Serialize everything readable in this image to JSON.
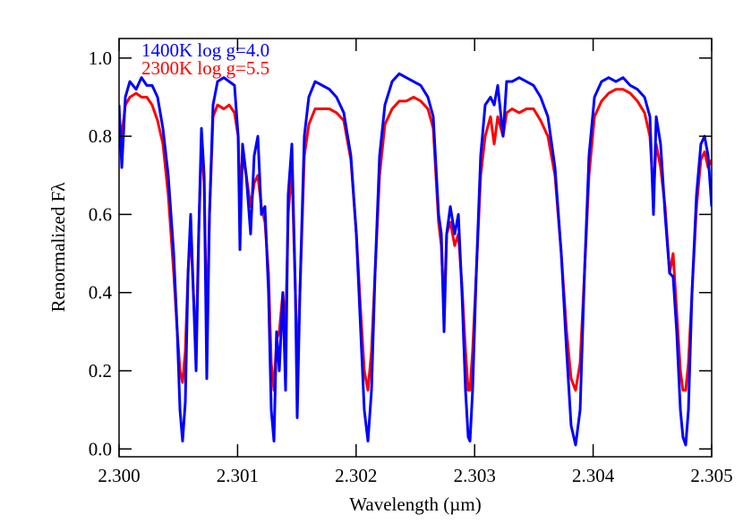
{
  "chart_data": {
    "type": "line",
    "x_label": "Wavelength (µm)",
    "y_label": "Renormalized Fλ",
    "x": [
      2.3,
      2.300023,
      2.300053,
      2.300091,
      2.300144,
      2.300189,
      2.300234,
      2.300279,
      2.300325,
      2.30037,
      2.300415,
      2.300461,
      2.300491,
      2.300514,
      2.300536,
      2.300559,
      2.300582,
      2.300604,
      2.300627,
      2.30065,
      2.300672,
      2.300695,
      2.300718,
      2.30074,
      2.300763,
      2.300793,
      2.300831,
      2.300884,
      2.300929,
      2.300974,
      2.301005,
      2.30102,
      2.301042,
      2.301073,
      2.30111,
      2.30114,
      2.301171,
      2.301201,
      2.301231,
      2.301261,
      2.301284,
      2.301307,
      2.301329,
      2.301352,
      2.301382,
      2.301405,
      2.301427,
      2.301458,
      2.301488,
      2.301503,
      2.301526,
      2.301563,
      2.301601,
      2.301654,
      2.301715,
      2.301775,
      2.301835,
      2.301896,
      2.301956,
      2.302002,
      2.302039,
      2.302069,
      2.3021,
      2.30213,
      2.30216,
      2.302198,
      2.302243,
      2.302304,
      2.302364,
      2.302424,
      2.302485,
      2.302545,
      2.302606,
      2.302651,
      2.302696,
      2.302719,
      2.302742,
      2.302764,
      2.302795,
      2.302832,
      2.302863,
      2.302893,
      2.302923,
      2.302946,
      2.302961,
      2.302983,
      2.303014,
      2.303051,
      2.303089,
      2.303134,
      2.303165,
      2.303195,
      2.30324,
      2.30327,
      2.303316,
      2.303376,
      2.303437,
      2.303497,
      2.303557,
      2.303618,
      2.303678,
      2.303731,
      2.303776,
      2.303814,
      2.303852,
      2.30389,
      2.303927,
      2.303965,
      2.304011,
      2.304071,
      2.304131,
      2.304192,
      2.304252,
      2.304313,
      2.304373,
      2.304434,
      2.304479,
      2.304509,
      2.304532,
      2.304569,
      2.304607,
      2.304645,
      2.304675,
      2.304705,
      2.304736,
      2.304758,
      2.304781,
      2.304804,
      2.304834,
      2.304872,
      2.304909,
      2.30494,
      2.30497,
      2.305
    ],
    "series": [
      {
        "name": "1400K log g=4.0",
        "color": "#0000ff",
        "values": [
          0.88,
          0.72,
          0.9,
          0.94,
          0.92,
          0.95,
          0.93,
          0.93,
          0.9,
          0.82,
          0.7,
          0.5,
          0.3,
          0.1,
          0.02,
          0.12,
          0.45,
          0.6,
          0.4,
          0.2,
          0.55,
          0.82,
          0.7,
          0.18,
          0.6,
          0.88,
          0.94,
          0.95,
          0.94,
          0.93,
          0.8,
          0.51,
          0.78,
          0.7,
          0.55,
          0.75,
          0.8,
          0.6,
          0.62,
          0.4,
          0.1,
          0.02,
          0.3,
          0.2,
          0.4,
          0.15,
          0.65,
          0.78,
          0.4,
          0.08,
          0.4,
          0.8,
          0.9,
          0.94,
          0.93,
          0.92,
          0.9,
          0.86,
          0.75,
          0.55,
          0.3,
          0.1,
          0.02,
          0.15,
          0.45,
          0.75,
          0.88,
          0.94,
          0.96,
          0.95,
          0.94,
          0.93,
          0.9,
          0.85,
          0.6,
          0.55,
          0.3,
          0.55,
          0.62,
          0.55,
          0.6,
          0.4,
          0.15,
          0.03,
          0.02,
          0.15,
          0.45,
          0.75,
          0.88,
          0.9,
          0.88,
          0.93,
          0.8,
          0.94,
          0.94,
          0.95,
          0.94,
          0.93,
          0.9,
          0.85,
          0.72,
          0.5,
          0.25,
          0.06,
          0.01,
          0.1,
          0.45,
          0.75,
          0.9,
          0.94,
          0.95,
          0.94,
          0.95,
          0.93,
          0.92,
          0.9,
          0.85,
          0.6,
          0.85,
          0.78,
          0.6,
          0.45,
          0.44,
          0.3,
          0.1,
          0.03,
          0.01,
          0.1,
          0.4,
          0.65,
          0.78,
          0.8,
          0.75,
          0.62
        ]
      },
      {
        "name": "2300K log g=5.5",
        "color": "#ff0000",
        "values": [
          0.85,
          0.8,
          0.88,
          0.9,
          0.91,
          0.9,
          0.9,
          0.88,
          0.84,
          0.78,
          0.65,
          0.45,
          0.3,
          0.2,
          0.17,
          0.25,
          0.45,
          0.56,
          0.4,
          0.25,
          0.55,
          0.78,
          0.68,
          0.3,
          0.6,
          0.85,
          0.88,
          0.87,
          0.88,
          0.86,
          0.8,
          0.65,
          0.75,
          0.7,
          0.62,
          0.68,
          0.7,
          0.62,
          0.58,
          0.45,
          0.22,
          0.15,
          0.28,
          0.3,
          0.4,
          0.3,
          0.6,
          0.72,
          0.4,
          0.2,
          0.4,
          0.75,
          0.83,
          0.87,
          0.87,
          0.87,
          0.86,
          0.84,
          0.74,
          0.55,
          0.35,
          0.2,
          0.15,
          0.25,
          0.45,
          0.7,
          0.83,
          0.87,
          0.89,
          0.89,
          0.9,
          0.89,
          0.87,
          0.82,
          0.58,
          0.52,
          0.35,
          0.55,
          0.58,
          0.52,
          0.55,
          0.42,
          0.25,
          0.15,
          0.15,
          0.25,
          0.45,
          0.7,
          0.8,
          0.85,
          0.78,
          0.85,
          0.8,
          0.86,
          0.87,
          0.86,
          0.87,
          0.87,
          0.84,
          0.8,
          0.7,
          0.5,
          0.3,
          0.18,
          0.15,
          0.22,
          0.45,
          0.7,
          0.85,
          0.89,
          0.91,
          0.92,
          0.92,
          0.91,
          0.89,
          0.86,
          0.8,
          0.65,
          0.78,
          0.72,
          0.62,
          0.45,
          0.5,
          0.35,
          0.2,
          0.15,
          0.15,
          0.22,
          0.4,
          0.62,
          0.74,
          0.76,
          0.72,
          0.74
        ]
      }
    ],
    "xlim": [
      2.3,
      2.305
    ],
    "xticks": [
      {
        "value": 2.3,
        "label": "2.300"
      },
      {
        "value": 2.301,
        "label": "2.301"
      },
      {
        "value": 2.302,
        "label": "2.302"
      },
      {
        "value": 2.303,
        "label": "2.303"
      },
      {
        "value": 2.304,
        "label": "2.304"
      },
      {
        "value": 2.305,
        "label": "2.305"
      }
    ],
    "ylim": [
      -0.02,
      1.05
    ],
    "yticks": [
      {
        "value": 0,
        "label": "0.0"
      },
      0.2,
      0.4,
      0.6,
      0.8,
      {
        "value": 1,
        "label": "1.0"
      }
    ],
    "legend": "top-left"
  }
}
